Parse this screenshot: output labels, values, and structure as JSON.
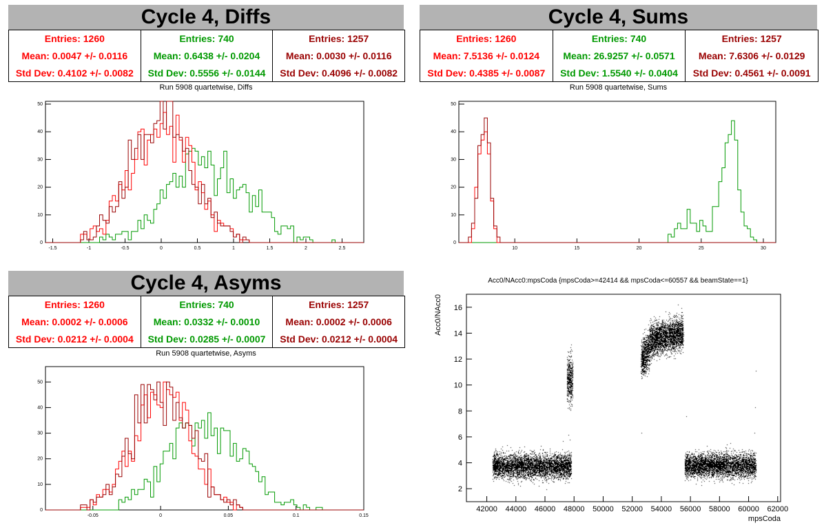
{
  "panels": {
    "diffs": {
      "title": "Cycle 4, Diffs",
      "subtitle": "Run 5908 quartetwise, Diffs",
      "stats": [
        {
          "entries": "Entries: 1260",
          "mean": "Mean: 0.0047 +/- 0.0116",
          "std": "Std Dev: 0.4102 +/- 0.0082",
          "color": "#ff0000"
        },
        {
          "entries": "Entries: 740",
          "mean": "Mean: 0.6438 +/- 0.0204",
          "std": "Std Dev: 0.5556 +/- 0.0144",
          "color": "#009900"
        },
        {
          "entries": "Entries: 1257",
          "mean": "Mean: 0.0030 +/- 0.0116",
          "std": "Std Dev: 0.4096 +/- 0.0082",
          "color": "#990000"
        }
      ]
    },
    "sums": {
      "title": "Cycle 4, Sums",
      "subtitle": "Run 5908 quartetwise, Sums",
      "stats": [
        {
          "entries": "Entries: 1260",
          "mean": "Mean: 7.5136 +/- 0.0124",
          "std": "Std Dev: 0.4385 +/- 0.0087",
          "color": "#ff0000"
        },
        {
          "entries": "Entries: 740",
          "mean": "Mean: 26.9257 +/- 0.0571",
          "std": "Std Dev: 1.5540 +/- 0.0404",
          "color": "#009900"
        },
        {
          "entries": "Entries: 1257",
          "mean": "Mean: 7.6306 +/- 0.0129",
          "std": "Std Dev: 0.4561 +/- 0.0091",
          "color": "#990000"
        }
      ]
    },
    "asyms": {
      "title": "Cycle 4, Asyms",
      "subtitle": "Run 5908 quartetwise, Asyms",
      "stats": [
        {
          "entries": "Entries: 1260",
          "mean": "Mean: 0.0002 +/- 0.0006",
          "std": "Std Dev: 0.0212 +/- 0.0004",
          "color": "#ff0000"
        },
        {
          "entries": "Entries: 740",
          "mean": "Mean: 0.0332 +/- 0.0010",
          "std": "Std Dev: 0.0285 +/- 0.0007",
          "color": "#009900"
        },
        {
          "entries": "Entries: 1257",
          "mean": "Mean: 0.0002 +/- 0.0006",
          "std": "Std Dev: 0.0212 +/- 0.0004",
          "color": "#990000"
        }
      ]
    },
    "scatter": {
      "title": "Acc0/NAcc0:mpsCoda {mpsCoda>=42414 && mpsCoda<=60557 && beamState==1}"
    }
  },
  "chart_data": [
    {
      "type": "histogram",
      "id": "diffs",
      "xlim": [
        -1.6,
        2.8
      ],
      "ylim": [
        0,
        51
      ],
      "xticks": [
        -1.5,
        -1,
        -0.5,
        0,
        0.5,
        1,
        1.5,
        2,
        2.5
      ],
      "yticks": [
        0,
        10,
        20,
        30,
        40,
        50
      ],
      "series": [
        {
          "color": "#009900",
          "shape": "gauss",
          "mean": 0.64,
          "sigma": 0.55,
          "peak": 30,
          "lo": -0.9,
          "hi": 2.5
        },
        {
          "color": "#ff0000",
          "shape": "gauss",
          "mean": 0.0,
          "sigma": 0.41,
          "peak": 45,
          "lo": -1.1,
          "hi": 1.2
        },
        {
          "color": "#990000",
          "shape": "gauss",
          "mean": 0.0,
          "sigma": 0.41,
          "peak": 45,
          "lo": -1.1,
          "hi": 1.2
        }
      ]
    },
    {
      "type": "histogram",
      "id": "sums",
      "xlim": [
        5.5,
        31
      ],
      "ylim": [
        0,
        51
      ],
      "xticks": [
        10,
        15,
        20,
        25,
        30
      ],
      "yticks": [
        0,
        10,
        20,
        30,
        40,
        50
      ],
      "series": [
        {
          "color": "#009900",
          "shape": "sums",
          "lo": 22.4,
          "hi": 30.0
        },
        {
          "color": "#ff0000",
          "shape": "gauss",
          "mean": 7.51,
          "sigma": 0.44,
          "peak": 46,
          "lo": 6.3,
          "hi": 8.7
        },
        {
          "color": "#990000",
          "shape": "gauss",
          "mean": 7.63,
          "sigma": 0.46,
          "peak": 45,
          "lo": 6.3,
          "hi": 9.1
        }
      ]
    },
    {
      "type": "histogram",
      "id": "asyms",
      "xlim": [
        -0.085,
        0.15
      ],
      "ylim": [
        0,
        56
      ],
      "xticks": [
        -0.05,
        0,
        0.05,
        0.1,
        0.15
      ],
      "yticks": [
        0,
        10,
        20,
        30,
        40,
        50
      ],
      "series": [
        {
          "color": "#009900",
          "shape": "gauss",
          "mean": 0.033,
          "sigma": 0.028,
          "peak": 33,
          "lo": -0.03,
          "hi": 0.13
        },
        {
          "color": "#ff0000",
          "shape": "gauss",
          "mean": 0.0,
          "sigma": 0.021,
          "peak": 48,
          "lo": -0.06,
          "hi": 0.06
        },
        {
          "color": "#990000",
          "shape": "gauss",
          "mean": 0.0,
          "sigma": 0.021,
          "peak": 48,
          "lo": -0.06,
          "hi": 0.06
        }
      ]
    },
    {
      "type": "scatter",
      "id": "scatter",
      "xlabel": "mpsCoda",
      "ylabel": "Acc0/NAcc0",
      "xlim": [
        40600,
        62200
      ],
      "ylim": [
        1,
        17
      ],
      "xticks": [
        42000,
        44000,
        46000,
        48000,
        50000,
        52000,
        54000,
        56000,
        58000,
        60000,
        62000
      ],
      "yticks": [
        2,
        4,
        6,
        8,
        10,
        12,
        14,
        16
      ],
      "clusters": [
        {
          "x0": 42400,
          "x1": 47800,
          "y0": 3.75,
          "y1": 3.75,
          "sd": 0.45,
          "n": 4500
        },
        {
          "x0": 47500,
          "x1": 47900,
          "y0": 10.5,
          "y1": 10.5,
          "sd": 0.9,
          "n": 500
        },
        {
          "x0": 52600,
          "x1": 53200,
          "y0": 12.0,
          "y1": 12.8,
          "sd": 0.7,
          "n": 700
        },
        {
          "x0": 53200,
          "x1": 55500,
          "y0": 13.5,
          "y1": 14.0,
          "sd": 0.6,
          "n": 2600
        },
        {
          "x0": 55600,
          "x1": 60500,
          "y0": 3.8,
          "y1": 3.8,
          "sd": 0.45,
          "n": 4200
        }
      ],
      "outliers": [
        [
          47720,
          5.8
        ],
        [
          52620,
          6.3
        ],
        [
          52620,
          10.5
        ],
        [
          55700,
          7.6
        ],
        [
          60400,
          6.3
        ],
        [
          60450,
          8.3
        ],
        [
          60500,
          11.1
        ]
      ]
    }
  ]
}
